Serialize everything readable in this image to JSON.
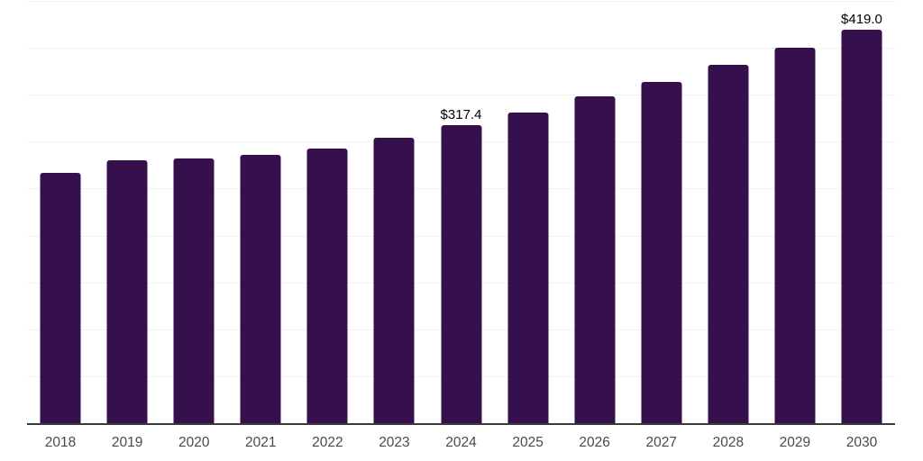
{
  "chart_data": {
    "type": "bar",
    "title": "",
    "xlabel": "",
    "ylabel": "",
    "categories": [
      "2018",
      "2019",
      "2020",
      "2021",
      "2022",
      "2023",
      "2024",
      "2025",
      "2026",
      "2027",
      "2028",
      "2029",
      "2030"
    ],
    "values": [
      267.0,
      280.0,
      282.5,
      286.0,
      292.5,
      304.5,
      317.4,
      331.5,
      348.0,
      364.0,
      381.5,
      400.0,
      419.0
    ],
    "labeled_points": [
      {
        "category": "2024",
        "label": "$317.4"
      },
      {
        "category": "2030",
        "label": "$419.0"
      }
    ],
    "ylim": [
      0,
      450
    ],
    "grid_step": 50,
    "grid": true,
    "legend": false,
    "colors": {
      "bar": "#36104d",
      "axis_line": "#3a3a3a",
      "gridline": "#f1f1f1",
      "tick_label": "#4a4a4a",
      "data_label": "#000000",
      "background": "#ffffff"
    }
  }
}
